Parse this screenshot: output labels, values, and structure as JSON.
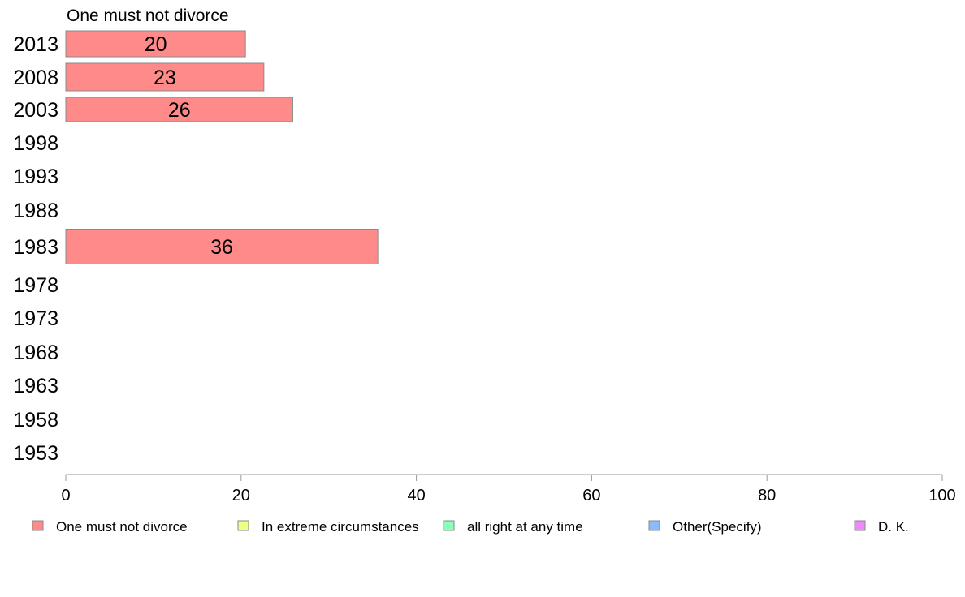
{
  "chart_data": {
    "type": "bar",
    "orientation": "horizontal",
    "series_title": "One must not divorce",
    "categories": [
      "2013",
      "2008",
      "2003",
      "1998",
      "1993",
      "1988",
      "1983",
      "1978",
      "1973",
      "1968",
      "1963",
      "1958",
      "1953"
    ],
    "series": [
      {
        "name": "One must not divorce",
        "color": "#ff8a8a",
        "values": [
          20.5,
          22.6,
          25.9,
          null,
          null,
          null,
          35.6,
          null,
          null,
          null,
          null,
          null,
          null
        ],
        "labels": [
          "20",
          "23",
          "26",
          "",
          "",
          "",
          "36",
          "",
          "",
          "",
          "",
          "",
          ""
        ]
      }
    ],
    "xlim": [
      0,
      100
    ],
    "xticks": [
      0,
      20,
      40,
      60,
      80,
      100
    ],
    "grid": false,
    "legend_position": "bottom",
    "legend": [
      {
        "label": "One must not divorce",
        "color": "#ff8a8a"
      },
      {
        "label": "In extreme circumstances",
        "color": "#eeff88"
      },
      {
        "label": "all right at any time",
        "color": "#88ffbb"
      },
      {
        "label": "Other(Specify)",
        "color": "#88bbff"
      },
      {
        "label": "D. K.",
        "color": "#ee88ff"
      }
    ]
  }
}
